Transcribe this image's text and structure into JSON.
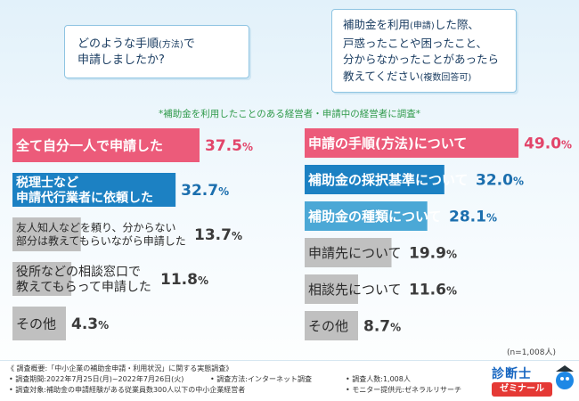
{
  "question_left": {
    "lines": [
      "どのような手順",
      "申請しましたか?"
    ],
    "tag": "(方法)",
    "tail": "で"
  },
  "question_right": {
    "lines": [
      "補助金を利用",
      "戸惑ったことや困ったこと、",
      "分からなかったことがあったら",
      "教えてください"
    ],
    "tag1": "(申請)",
    "tail1": "した際、",
    "tag2": "(複数回答可)"
  },
  "survey_note": "*補助金を利用したことのある経営者・申請中の経営者に調査*",
  "sample_size": "(n=1,008人)",
  "chart_data": [
    {
      "type": "bar",
      "categories": [
        [
          "全て自分一人で申請した"
        ],
        [
          "税理士など",
          "申請代行業者に依頼した"
        ],
        [
          "友人知人などを頼り、分からない",
          "部分は教えてもらいながら申請した"
        ],
        [
          "役所などの相談窓口で",
          "教えてもらって申請した"
        ],
        [
          "その他"
        ]
      ],
      "values": [
        37.5,
        32.7,
        13.7,
        11.8,
        4.3
      ],
      "unit": "%",
      "xlim": [
        0,
        100
      ],
      "colors": [
        "#ec5b7a",
        "#1c81c3",
        "#c0c0c0",
        "#c0c0c0",
        "#c0c0c0"
      ]
    },
    {
      "type": "bar",
      "categories": [
        [
          "申請の手順(方法)について"
        ],
        [
          "補助金の採択基準について"
        ],
        [
          "補助金の種類について"
        ],
        [
          "申請先について"
        ],
        [
          "相談先について"
        ],
        [
          "その他"
        ]
      ],
      "values": [
        49.0,
        32.0,
        28.1,
        19.9,
        11.6,
        8.7
      ],
      "unit": "%",
      "xlim": [
        0,
        100
      ],
      "colors": [
        "#ec5b7a",
        "#1c81c3",
        "#4ba8d6",
        "#c0c0c0",
        "#c0c0c0",
        "#c0c0c0"
      ]
    }
  ],
  "footer": {
    "title": "《 調査概要:「中小企業の補助金申請・利用状況」に関する実態調査》",
    "period": "• 調査期間:2022年7月25日(月)~2022年7月26日(火)",
    "method": "• 調査方法:インターネット調査",
    "people": "• 調査人数:1,008人",
    "target": "• 調査対象:補助金の申請経験がある従業員数300人以下の中小企業経営者",
    "monitor": "• モニター提供元:ゼネラルリサーチ"
  },
  "logo": {
    "top": "診断士",
    "bottom": "ゼミナール"
  }
}
